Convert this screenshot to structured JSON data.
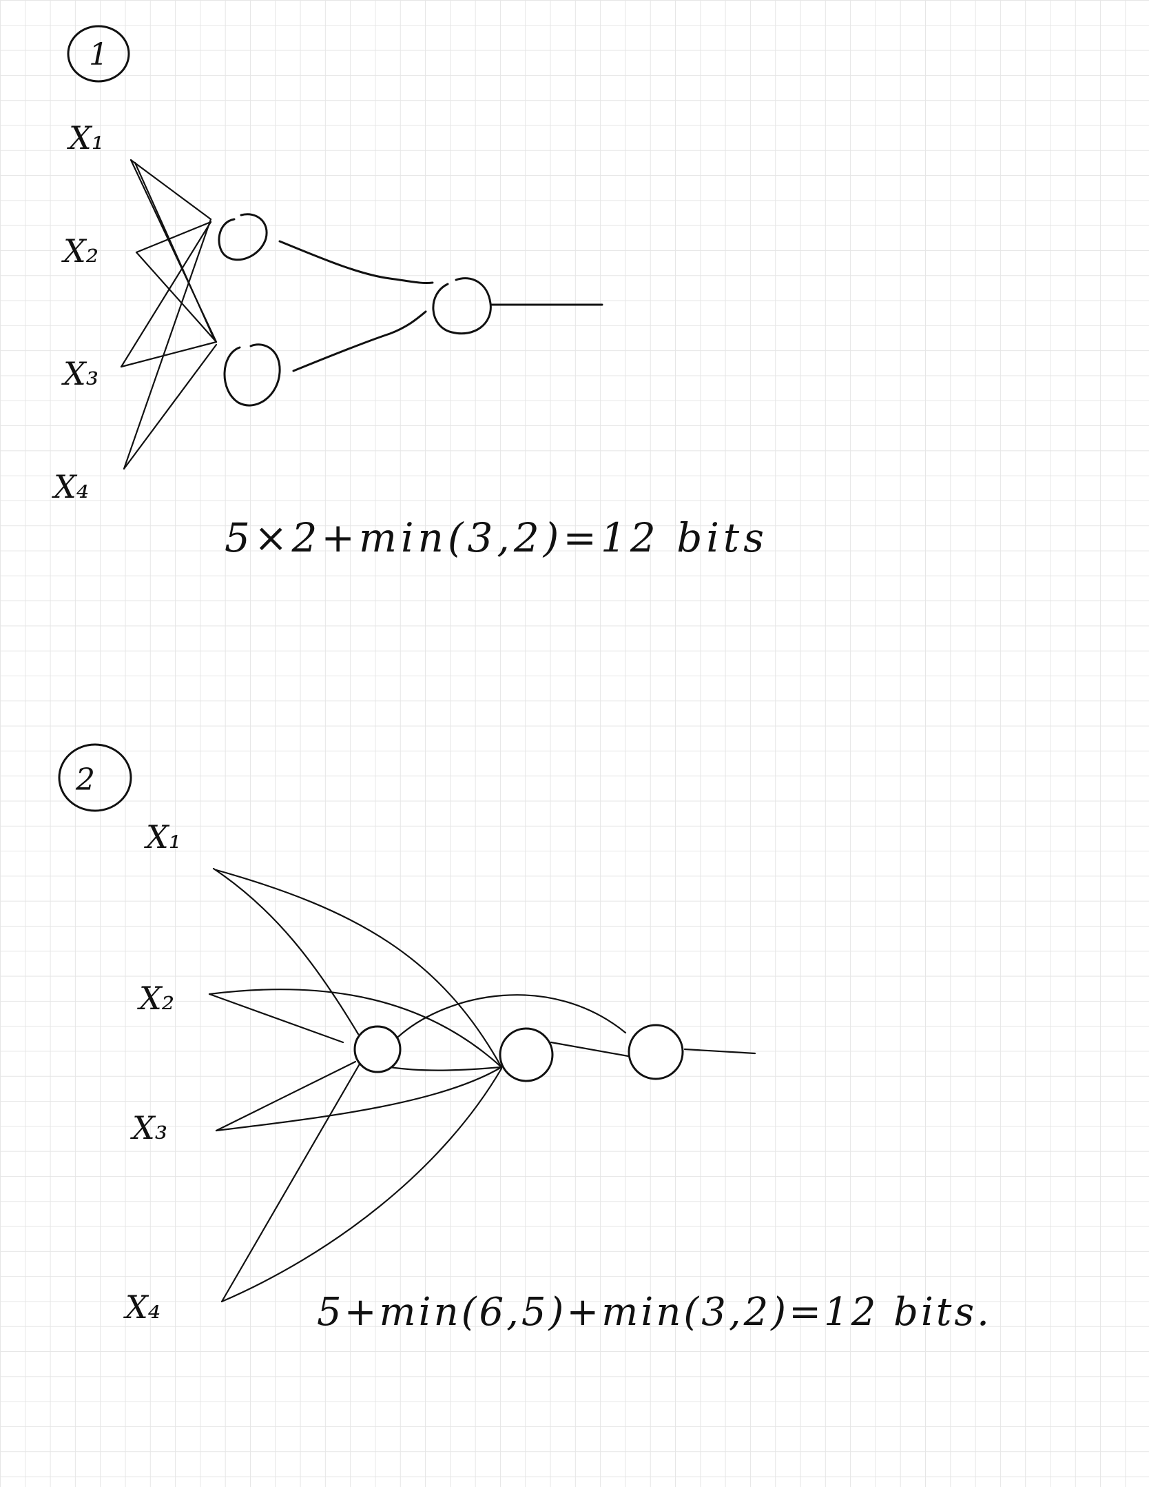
{
  "diagram1": {
    "number": "1",
    "inputs": [
      "X₁",
      "X₂",
      "X₃",
      "X₄"
    ],
    "formula": "5×2+min(3,2)=12 bits"
  },
  "diagram2": {
    "number": "2",
    "inputs": [
      "X₁",
      "X₂",
      "X₃",
      "X₄"
    ],
    "formula": "5+min(6,5)+min(3,2)=12 bits."
  }
}
